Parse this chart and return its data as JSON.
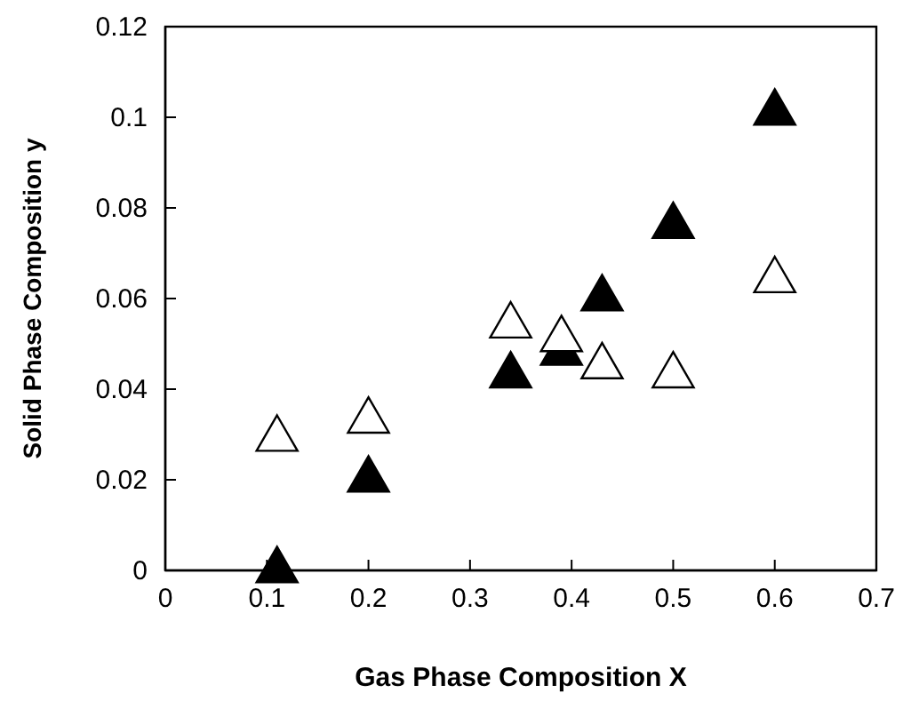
{
  "chart_data": {
    "type": "scatter",
    "xlabel": "Gas Phase Composition X",
    "ylabel": "Solid Phase Composition y",
    "xlim": [
      0,
      0.7
    ],
    "xticks": [
      0,
      0.1,
      0.2,
      0.3,
      0.4,
      0.5,
      0.6,
      0.7
    ],
    "ylim": [
      0,
      0.12
    ],
    "yticks": [
      0,
      0.02,
      0.04,
      0.06,
      0.08,
      0.1,
      0.12
    ],
    "marker": "triangle",
    "grid": false,
    "series": [
      {
        "color": "#000000",
        "x": [
          0.11,
          0.2,
          0.34,
          0.39,
          0.43,
          0.5,
          0.6
        ],
        "values": [
          0,
          0.02,
          0.043,
          0.048,
          0.06,
          0.076,
          0.101
        ]
      },
      {
        "color": "#ffffff",
        "x": [
          0.11,
          0.2,
          0.34,
          0.39,
          0.43,
          0.5,
          0.6
        ],
        "values": [
          0.029,
          0.033,
          0.054,
          0.051,
          0.045,
          0.043,
          0.064
        ]
      }
    ]
  }
}
